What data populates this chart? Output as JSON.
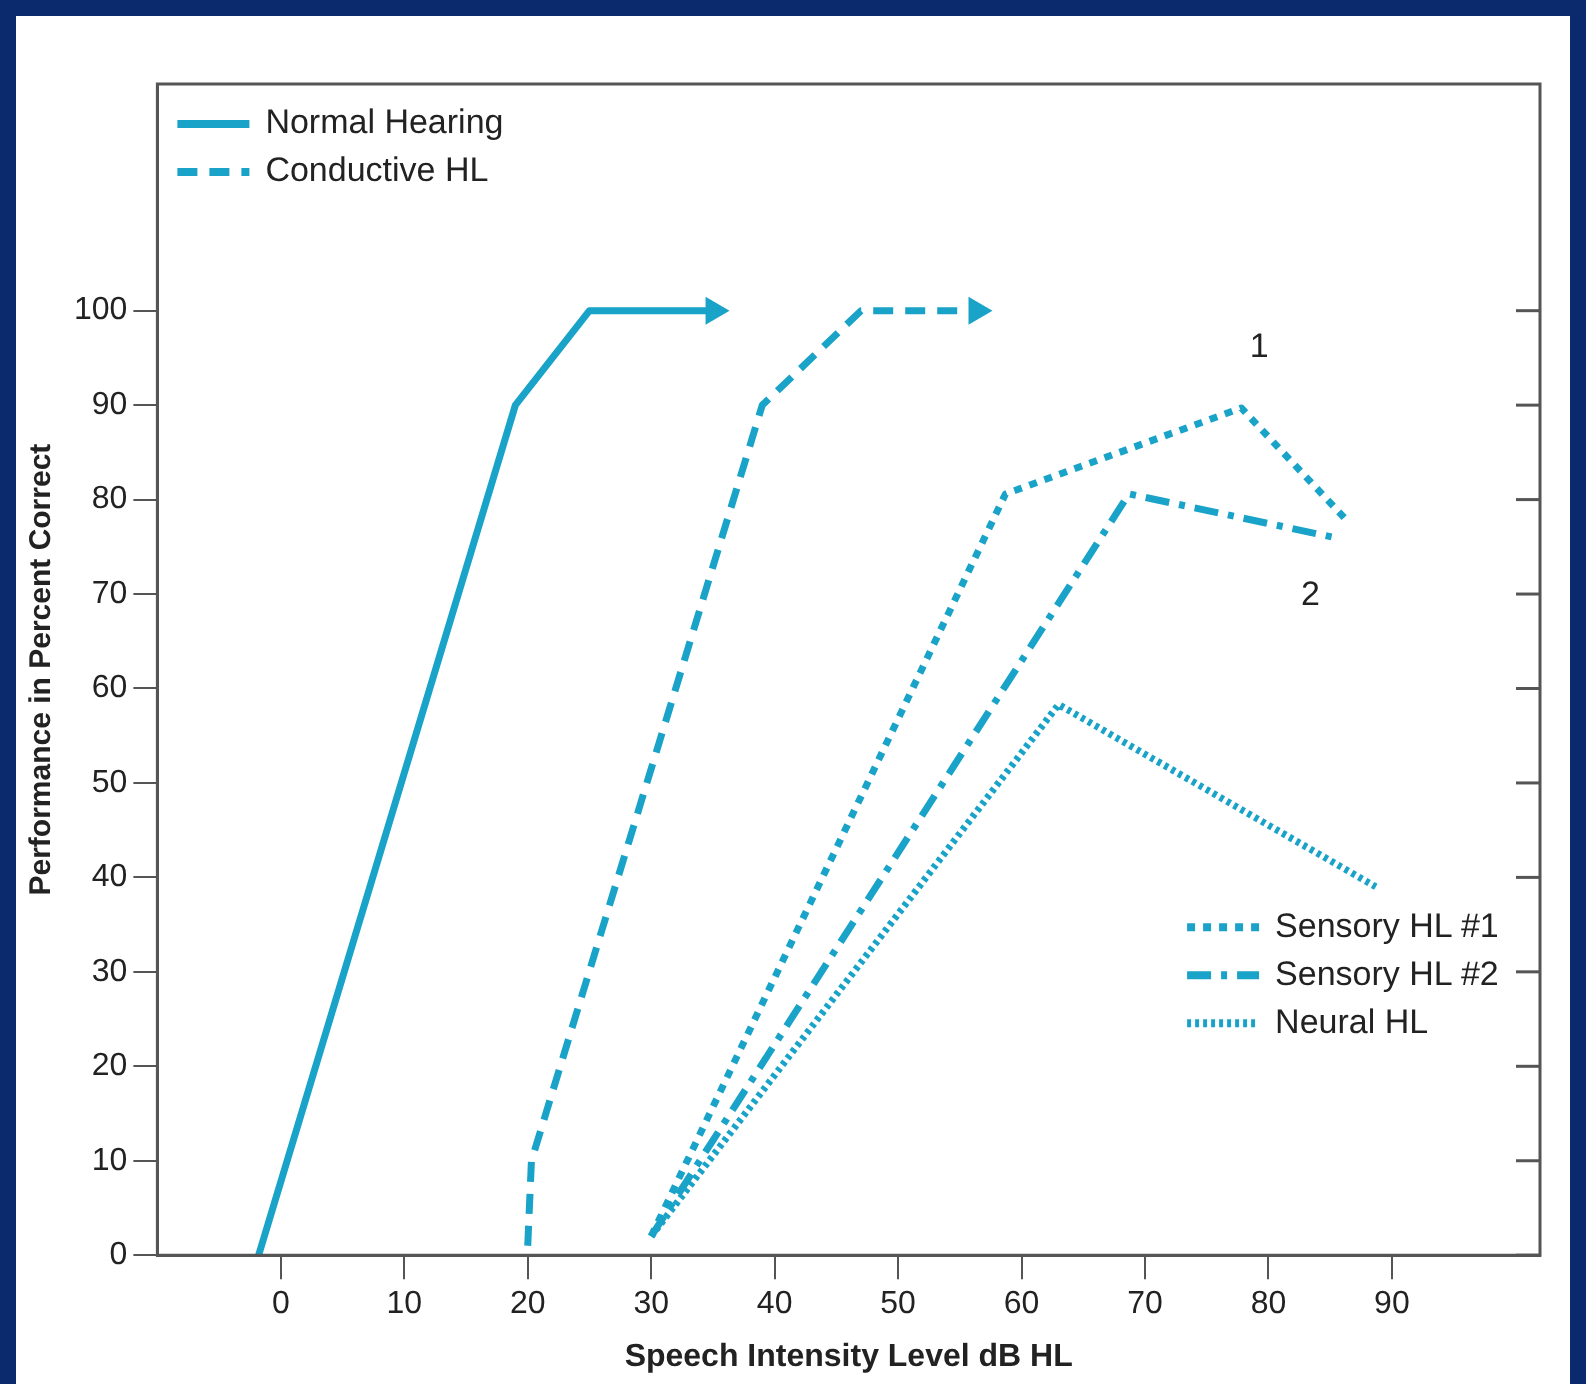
{
  "chart_data": {
    "type": "line",
    "xlabel": "Speech Intensity Level dB HL",
    "ylabel": "Performance in Percent Correct",
    "xlim": [
      -10,
      102
    ],
    "xticks": [
      0,
      10,
      20,
      30,
      40,
      50,
      60,
      70,
      80,
      90
    ],
    "ylim": [
      0,
      124
    ],
    "yticks": [
      0,
      10,
      20,
      30,
      40,
      50,
      60,
      70,
      80,
      90,
      100
    ],
    "grid": false,
    "legend": "top left",
    "marker": "none",
    "series": [
      {
        "name": "Normal Hearing",
        "color": "#1aa3c8",
        "line_style": "solid",
        "x": [
          -1.8,
          19,
          25,
          35.7
        ],
        "values": [
          0,
          90,
          100,
          100
        ]
      },
      {
        "name": "Conductive HL",
        "color": "#1aa3c8",
        "line_style": "dashed",
        "x": [
          20,
          20.3,
          39,
          47,
          57
        ],
        "values": [
          1,
          10,
          90,
          100,
          100
        ]
      },
      {
        "name": "Sensory HL #1",
        "color": "#1aa3c8",
        "line_style": "dotted",
        "x": [
          30,
          58.7,
          77.8,
          86.2
        ],
        "values": [
          2,
          80.6,
          89.7,
          78
        ]
      },
      {
        "name": "Sensory HL #2",
        "color": "#1aa3c8",
        "line_style": "dashdot",
        "x": [
          30,
          68.7,
          85.3
        ],
        "values": [
          2,
          80.6,
          76
        ]
      },
      {
        "name": "Neural HL",
        "color": "#1aa3c8",
        "line_style": "finedotted",
        "x": [
          30,
          63,
          88.7
        ],
        "values": [
          2,
          58.3,
          39
        ]
      }
    ],
    "annotations": [
      "1",
      "2"
    ]
  }
}
